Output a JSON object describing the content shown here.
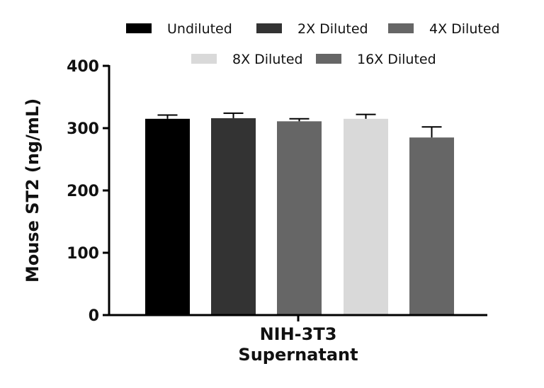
{
  "chart_data": {
    "type": "bar",
    "title": "",
    "xlabel": "NIH-3T3\nSupernatant",
    "xlabel_lines": [
      "NIH-3T3",
      "Supernatant"
    ],
    "ylabel": "Mouse ST2 (ng/mL)",
    "ylim": [
      0,
      400
    ],
    "yticks": [
      0,
      100,
      200,
      300,
      400
    ],
    "ytick_labels": [
      "0",
      "100",
      "200",
      "300",
      "400"
    ],
    "categories": [
      "NIH-3T3 Supernatant"
    ],
    "legend_position": "top",
    "series": [
      {
        "name": "Undiluted",
        "values": [
          315
        ],
        "error": [
          6
        ],
        "color": "#000000"
      },
      {
        "name": "2X Diluted",
        "values": [
          316
        ],
        "error": [
          8
        ],
        "color": "#333333"
      },
      {
        "name": "4X Diluted",
        "values": [
          311
        ],
        "error": [
          4
        ],
        "color": "#666666"
      },
      {
        "name": "8X Diluted",
        "values": [
          315
        ],
        "error": [
          7
        ],
        "color": "#d9d9d9"
      },
      {
        "name": "16X Diluted",
        "values": [
          285
        ],
        "error": [
          17
        ],
        "color": "#666666"
      }
    ]
  }
}
